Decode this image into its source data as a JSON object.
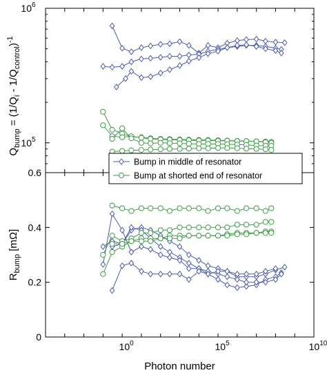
{
  "colors": {
    "blue": "#4b5bab",
    "green": "#3d9b45",
    "axis": "#000000"
  },
  "chart_data": [
    {
      "type": "line",
      "panel": "top",
      "ylabel_parts": [
        "Q",
        "bump",
        " = (1/Q",
        "i",
        " - 1/Q",
        "control",
        ")",
        "-1"
      ],
      "yscale": "log",
      "ylim": [
        60000,
        1000000
      ],
      "yticks": [
        {
          "base": "10",
          "exp": "5",
          "value": 100000
        },
        {
          "base": "10",
          "exp": "6",
          "value": 1000000
        }
      ],
      "xscale": "log",
      "xlim": [
        0.0001,
        10000000000
      ],
      "legend_position": "bottom-right",
      "legend": [
        {
          "label": "Bump in middle of resonator",
          "color": "blue",
          "marker": "diamond"
        },
        {
          "label": "Bump at shorted end of resonator",
          "color": "green",
          "marker": "circle"
        }
      ],
      "series": [
        {
          "color": "blue",
          "marker": "diamond",
          "x": [
            0.3,
            1,
            3,
            10,
            30,
            100,
            300,
            1000,
            3000,
            10000,
            30000,
            100000,
            300000,
            1000000,
            3000000,
            10000000,
            30000000,
            100000000,
            300000000
          ],
          "y": [
            740000,
            505000,
            475000,
            510000,
            525000,
            540000,
            545000,
            565000,
            530000,
            465000,
            530000,
            510000,
            550000,
            575000,
            585000,
            590000,
            570000,
            560000,
            555000
          ]
        },
        {
          "color": "blue",
          "marker": "diamond",
          "x": [
            0.1,
            0.3,
            1,
            3,
            10,
            30,
            100,
            300,
            1000,
            3000,
            10000,
            30000,
            100000,
            300000,
            1000000,
            3000000,
            10000000,
            30000000,
            100000000,
            200000000
          ],
          "y": [
            370000,
            365000,
            370000,
            400000,
            420000,
            425000,
            432000,
            440000,
            440000,
            450000,
            455000,
            480000,
            495000,
            510000,
            520000,
            530000,
            530000,
            520000,
            505000,
            495000
          ]
        },
        {
          "color": "blue",
          "marker": "diamond",
          "x": [
            0.5,
            1.5,
            3,
            10,
            30,
            100,
            300,
            1000,
            3000,
            10000,
            30000,
            100000,
            300000,
            1000000,
            3000000,
            10000000,
            30000000,
            100000000,
            200000000
          ],
          "y": [
            260000,
            300000,
            340000,
            305000,
            310000,
            330000,
            350000,
            375000,
            405000,
            430000,
            460000,
            480000,
            510000,
            530000,
            535000,
            520000,
            500000,
            485000,
            465000
          ]
        },
        {
          "color": "green",
          "marker": "circle",
          "x": [
            0.1,
            0.3,
            1,
            3,
            10,
            30,
            100,
            300,
            1000,
            3000,
            10000,
            30000,
            100000,
            300000,
            1000000,
            3000000,
            10000000,
            30000000,
            60000000
          ],
          "y": [
            170000,
            125000,
            117000,
            111000,
            110000,
            108000,
            107000,
            106500,
            106000,
            105500,
            105000,
            105000,
            104500,
            104000,
            103500,
            103000,
            102500,
            102000,
            101500
          ]
        },
        {
          "color": "green",
          "marker": "circle",
          "x": [
            0.1,
            0.3,
            1,
            3,
            10,
            30,
            100,
            300,
            1000,
            3000,
            10000,
            30000,
            100000,
            300000,
            1000000,
            3000000,
            10000000,
            30000000,
            60000000
          ],
          "y": [
            135000,
            112000,
            110000,
            112000,
            109000,
            107000,
            106000,
            105500,
            105000,
            104500,
            104000,
            104000,
            103500,
            103500,
            103000,
            103000,
            102500,
            101000,
            100000
          ]
        },
        {
          "color": "green",
          "marker": "circle",
          "x": [
            0.3,
            1,
            3,
            10,
            30,
            100,
            300,
            1000,
            3000,
            10000,
            30000,
            100000,
            300000,
            1000000,
            3000000,
            10000000,
            30000000,
            60000000
          ],
          "y": [
            107000,
            128000,
            108000,
            100000,
            99000,
            100000,
            99500,
            99000,
            98500,
            98000,
            98000,
            98000,
            97500,
            97000,
            96500,
            95500,
            95000,
            95000
          ]
        },
        {
          "color": "green",
          "marker": "circle",
          "x": [
            0.3,
            1,
            3,
            10,
            30,
            100,
            300,
            1000,
            3000,
            10000,
            30000,
            100000,
            300000,
            1000000,
            3000000,
            10000000,
            30000000,
            60000000
          ],
          "y": [
            86000,
            87000,
            88000,
            88500,
            89000,
            89500,
            90000,
            90000,
            90500,
            91000,
            91000,
            91500,
            91500,
            91000,
            90500,
            90000,
            89500,
            88500
          ]
        }
      ]
    },
    {
      "type": "line",
      "panel": "bottom",
      "ylabel_parts": [
        "R",
        "bump",
        " [mΩ]"
      ],
      "yscale": "linear",
      "ylim": [
        0,
        0.6
      ],
      "yticks": [
        "0",
        "0.2",
        "0.4",
        "0.6"
      ],
      "xscale": "log",
      "xlim": [
        0.0001,
        10000000000
      ],
      "xticks": [
        {
          "base": "10",
          "exp": "0",
          "value": 1
        },
        {
          "base": "10",
          "exp": "5",
          "value": 100000
        },
        {
          "base": "10",
          "exp": "10",
          "value": 10000000000
        }
      ],
      "xlabel": "Photon number",
      "series": [
        {
          "color": "blue",
          "marker": "diamond",
          "x": [
            0.3,
            1,
            3,
            10,
            30,
            100,
            300,
            1000,
            3000,
            10000,
            30000,
            100000,
            300000,
            1000000,
            3000000,
            10000000,
            30000000,
            100000000,
            300000000
          ],
          "y": [
            0.33,
            0.34,
            0.39,
            0.4,
            0.39,
            0.37,
            0.35,
            0.33,
            0.3,
            0.28,
            0.26,
            0.25,
            0.24,
            0.22,
            0.22,
            0.22,
            0.23,
            0.245,
            0.255
          ]
        },
        {
          "color": "blue",
          "marker": "diamond",
          "x": [
            0.1,
            0.3,
            1,
            3,
            10,
            30,
            100,
            300,
            1000,
            3000,
            10000,
            30000,
            100000,
            300000,
            1000000,
            3000000,
            10000000,
            30000000,
            100000000,
            200000000
          ],
          "y": [
            0.33,
            0.35,
            0.34,
            0.4,
            0.39,
            0.36,
            0.33,
            0.31,
            0.29,
            0.27,
            0.25,
            0.23,
            0.21,
            0.19,
            0.18,
            0.185,
            0.19,
            0.21,
            0.22,
            0.235
          ]
        },
        {
          "color": "blue",
          "marker": "diamond",
          "x": [
            0.1,
            0.3,
            1,
            3,
            10,
            30,
            100,
            300,
            1000,
            3000,
            10000,
            30000,
            100000,
            300000,
            1000000,
            3000000,
            10000000,
            30000000,
            100000000,
            200000000
          ],
          "y": [
            0.265,
            0.45,
            0.39,
            0.31,
            0.33,
            0.32,
            0.3,
            0.29,
            0.28,
            0.25,
            0.25,
            0.24,
            0.23,
            0.22,
            0.21,
            0.2,
            0.2,
            0.2,
            0.21,
            0.23
          ]
        },
        {
          "color": "blue",
          "marker": "diamond",
          "x": [
            0.3,
            1,
            3,
            10,
            30,
            100,
            300,
            1000,
            3000,
            10000,
            30000,
            100000,
            300000,
            1000000,
            3000000,
            10000000,
            30000000,
            100000000
          ],
          "y": [
            0.17,
            0.26,
            0.27,
            0.24,
            0.23,
            0.23,
            0.23,
            0.23,
            0.21,
            0.24,
            0.23,
            0.24,
            0.24,
            0.23,
            0.23,
            0.23,
            0.24,
            0.25
          ]
        },
        {
          "color": "green",
          "marker": "circle",
          "x": [
            0.3,
            1,
            3,
            10,
            30,
            100,
            300,
            1000,
            3000,
            10000,
            30000,
            100000,
            300000,
            1000000,
            3000000,
            10000000,
            30000000,
            60000000
          ],
          "y": [
            0.48,
            0.47,
            0.46,
            0.47,
            0.47,
            0.47,
            0.46,
            0.47,
            0.47,
            0.47,
            0.46,
            0.47,
            0.47,
            0.46,
            0.47,
            0.47,
            0.46,
            0.47
          ]
        },
        {
          "color": "green",
          "marker": "circle",
          "x": [
            0.1,
            0.3,
            1,
            3,
            10,
            30,
            100,
            300,
            1000,
            3000,
            10000,
            30000,
            100000,
            300000,
            1000000,
            3000000,
            10000000,
            30000000,
            60000000
          ],
          "y": [
            0.3,
            0.37,
            0.35,
            0.36,
            0.38,
            0.38,
            0.39,
            0.39,
            0.4,
            0.4,
            0.4,
            0.4,
            0.4,
            0.4,
            0.41,
            0.41,
            0.41,
            0.42,
            0.42
          ]
        },
        {
          "color": "green",
          "marker": "circle",
          "x": [
            0.1,
            0.3,
            1,
            3,
            10,
            30,
            100,
            300,
            1000,
            3000,
            10000,
            30000,
            100000,
            300000,
            1000000,
            3000000,
            10000000,
            30000000,
            60000000
          ],
          "y": [
            0.23,
            0.31,
            0.33,
            0.35,
            0.36,
            0.36,
            0.36,
            0.37,
            0.37,
            0.37,
            0.37,
            0.37,
            0.37,
            0.375,
            0.38,
            0.38,
            0.38,
            0.385,
            0.385
          ]
        },
        {
          "color": "green",
          "marker": "circle",
          "x": [
            0.3,
            1,
            3,
            10,
            30,
            100,
            300,
            1000,
            3000,
            10000,
            30000,
            100000,
            300000,
            1000000,
            3000000,
            10000000,
            30000000,
            60000000
          ],
          "y": [
            0.34,
            0.34,
            0.35,
            0.35,
            0.35,
            0.36,
            0.36,
            0.36,
            0.37,
            0.37,
            0.37,
            0.37,
            0.37,
            0.375,
            0.375,
            0.38,
            0.38,
            0.38
          ]
        }
      ]
    }
  ]
}
